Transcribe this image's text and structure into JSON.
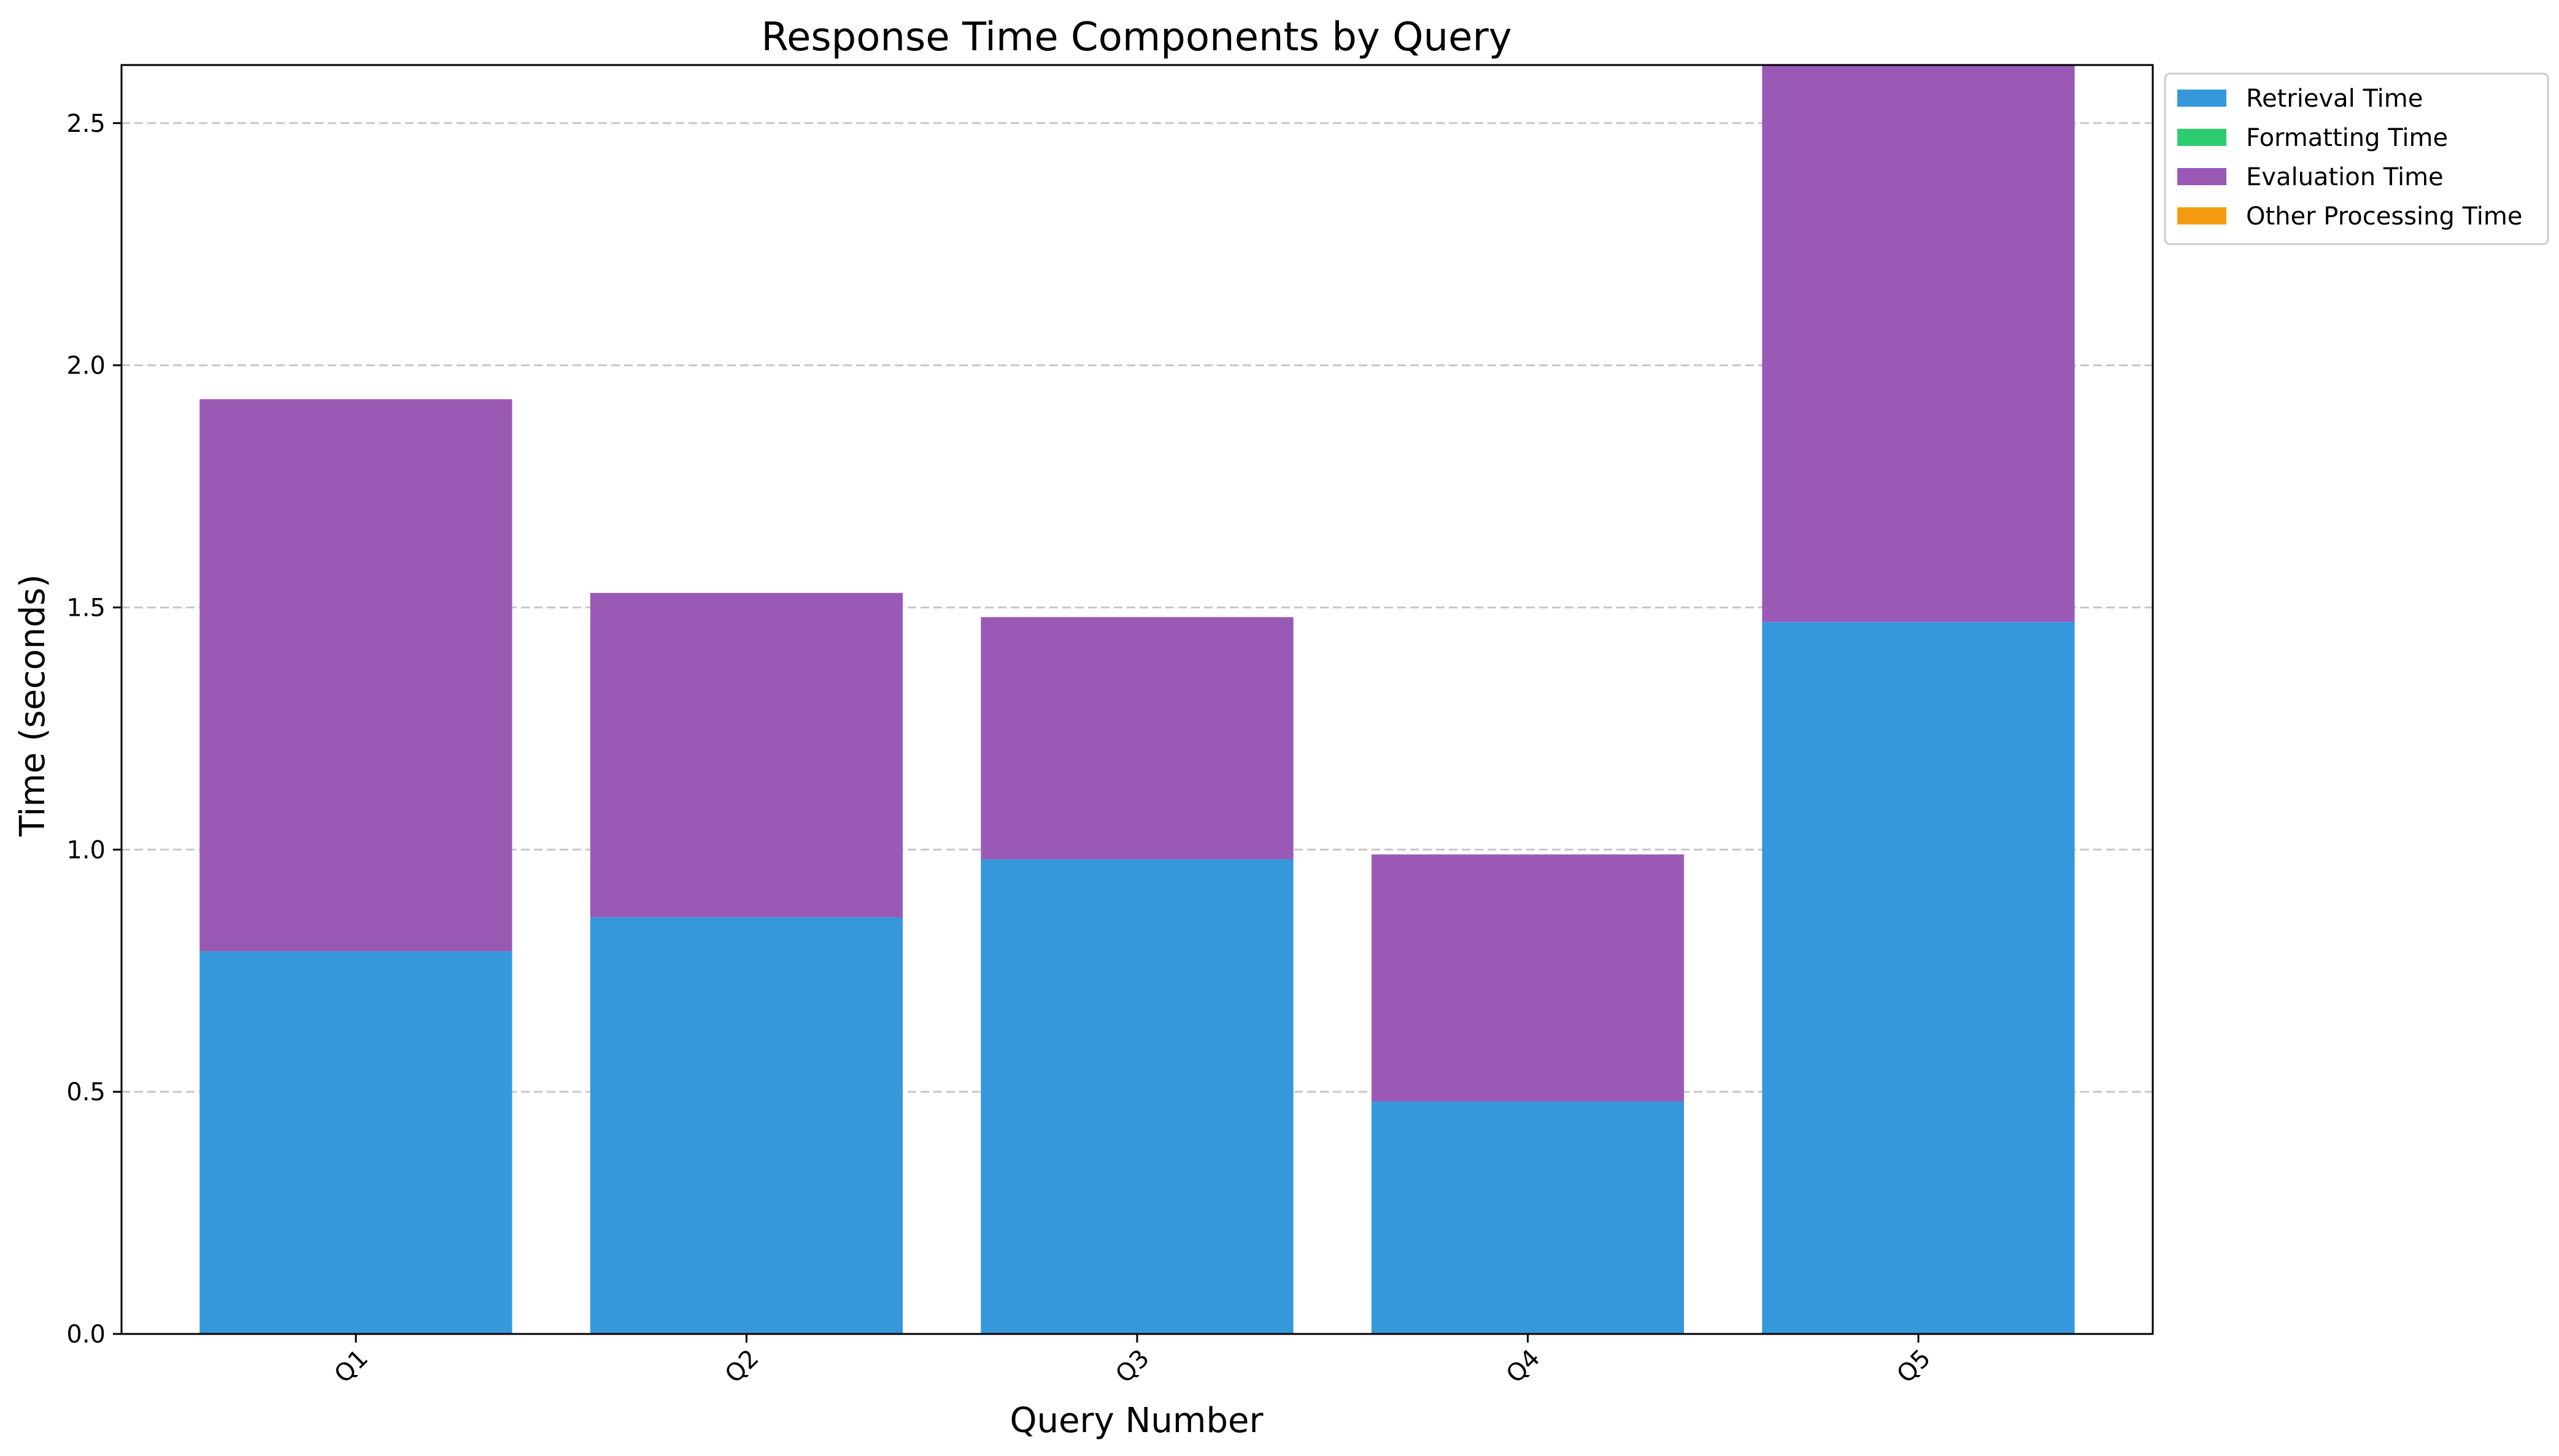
{
  "chart_data": {
    "type": "bar",
    "stacked": true,
    "title": "Response Time Components by Query",
    "xlabel": "Query Number",
    "ylabel": "Time (seconds)",
    "categories": [
      "Q1",
      "Q2",
      "Q3",
      "Q4",
      "Q5"
    ],
    "ylim": [
      0,
      2.62
    ],
    "yticks": [
      "0.0",
      "0.5",
      "1.0",
      "1.5",
      "2.0",
      "2.5"
    ],
    "grid": "horizontal-dashed",
    "legend_position": "outside-top-right",
    "series": [
      {
        "name": "Retrieval Time",
        "color": "#3498db",
        "values": [
          0.79,
          0.86,
          0.98,
          0.48,
          1.47
        ]
      },
      {
        "name": "Formatting Time",
        "color": "#2ecc71",
        "values": [
          0.0,
          0.0,
          0.0,
          0.0,
          0.0
        ]
      },
      {
        "name": "Evaluation Time",
        "color": "#9b59b6",
        "values": [
          1.14,
          0.67,
          0.5,
          0.51,
          1.15
        ]
      },
      {
        "name": "Other Processing Time",
        "color": "#f39c12",
        "values": [
          0.0,
          0.0,
          0.0,
          0.0,
          0.0
        ]
      }
    ]
  }
}
